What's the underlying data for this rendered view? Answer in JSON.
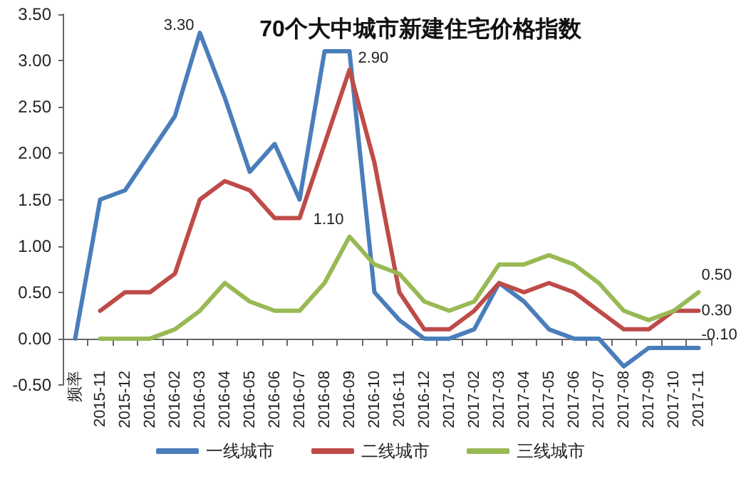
{
  "chart_data": {
    "type": "line",
    "title": "70个大中城市新建住宅价格指数",
    "categories": [
      "频率",
      "2015-11",
      "2015-12",
      "2016-01",
      "2016-02",
      "2016-03",
      "2016-04",
      "2016-05",
      "2016-06",
      "2016-07",
      "2016-08",
      "2016-09",
      "2016-10",
      "2016-11",
      "2016-12",
      "2017-01",
      "2017-02",
      "2017-03",
      "2017-04",
      "2017-05",
      "2017-06",
      "2017-07",
      "2017-08",
      "2017-09",
      "2017-10",
      "2017-11"
    ],
    "series": [
      {
        "name": "一线城市",
        "color": "#4a7ebb",
        "values": [
          0,
          1.5,
          1.6,
          2.0,
          2.4,
          3.3,
          2.6,
          1.8,
          2.1,
          1.5,
          3.1,
          3.1,
          0.5,
          0.2,
          0.0,
          0.0,
          0.1,
          0.6,
          0.4,
          0.1,
          0.0,
          0.0,
          -0.3,
          -0.1,
          -0.1,
          -0.1
        ],
        "value_labels": [
          null,
          null,
          null,
          null,
          null,
          "3.30",
          null,
          null,
          null,
          null,
          null,
          null,
          null,
          null,
          null,
          null,
          null,
          null,
          null,
          null,
          null,
          null,
          null,
          null,
          null,
          "-0.10"
        ]
      },
      {
        "name": "二线城市",
        "color": "#be4b48",
        "values": [
          null,
          0.3,
          0.5,
          0.5,
          0.7,
          1.5,
          1.7,
          1.6,
          1.3,
          1.3,
          2.1,
          2.9,
          1.9,
          0.5,
          0.1,
          0.1,
          0.3,
          0.6,
          0.5,
          0.6,
          0.5,
          0.3,
          0.1,
          0.1,
          0.3,
          0.3
        ],
        "value_labels": [
          null,
          null,
          null,
          null,
          null,
          null,
          null,
          null,
          null,
          null,
          null,
          "2.90",
          null,
          null,
          null,
          null,
          null,
          null,
          null,
          null,
          null,
          null,
          null,
          null,
          null,
          "0.30"
        ]
      },
      {
        "name": "三线城市",
        "color": "#98b954",
        "values": [
          null,
          0.0,
          0.0,
          0.0,
          0.1,
          0.3,
          0.6,
          0.4,
          0.3,
          0.3,
          0.6,
          1.1,
          0.8,
          0.7,
          0.4,
          0.3,
          0.4,
          0.8,
          0.8,
          0.9,
          0.8,
          0.6,
          0.3,
          0.2,
          0.3,
          0.5
        ],
        "value_labels": [
          null,
          null,
          null,
          null,
          null,
          null,
          null,
          null,
          null,
          null,
          null,
          "1.10",
          null,
          null,
          null,
          null,
          null,
          null,
          null,
          null,
          null,
          null,
          null,
          null,
          null,
          "0.50"
        ]
      }
    ],
    "ylim": [
      -0.5,
      3.5
    ],
    "yticks": [
      {
        "value": -0.5,
        "label": "-0.50"
      },
      {
        "value": 0,
        "label": "0.00"
      },
      {
        "value": 0.5,
        "label": "0.50"
      },
      {
        "value": 1,
        "label": "1.00"
      },
      {
        "value": 1.5,
        "label": "1.50"
      },
      {
        "value": 2,
        "label": "2.00"
      },
      {
        "value": 2.5,
        "label": "2.50"
      },
      {
        "value": 3,
        "label": "3.00"
      },
      {
        "value": 3.5,
        "label": "3.50"
      }
    ],
    "grid": false,
    "legend": "bottom",
    "marker": "none",
    "line_style": "solid"
  }
}
